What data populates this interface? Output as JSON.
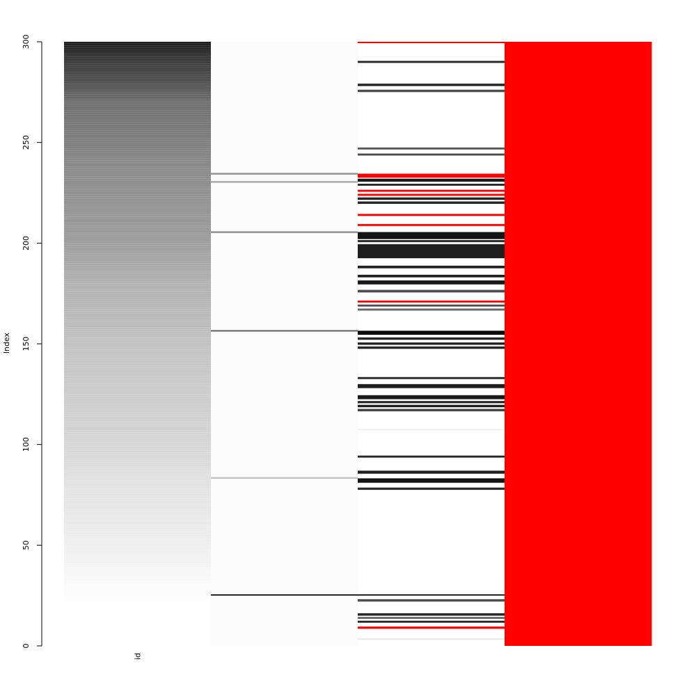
{
  "chart_data": {
    "type": "heatmap",
    "ylabel": "Index",
    "ylim": [
      0,
      300
    ],
    "yticks": [
      0,
      50,
      100,
      150,
      200,
      250,
      300
    ],
    "column_labels": [
      "id",
      "",
      "",
      ""
    ],
    "n_rows": 300,
    "colors": {
      "missing": "#ff0000",
      "background": "#ffffff"
    },
    "columns": [
      {
        "kind": "gradient",
        "stops": [
          {
            "index": 0,
            "value": 0.0
          },
          {
            "index": 20,
            "value": 0.0
          },
          {
            "index": 40,
            "value": 0.04
          },
          {
            "index": 60,
            "value": 0.08
          },
          {
            "index": 80,
            "value": 0.11
          },
          {
            "index": 100,
            "value": 0.16
          },
          {
            "index": 120,
            "value": 0.19
          },
          {
            "index": 140,
            "value": 0.22
          },
          {
            "index": 160,
            "value": 0.26
          },
          {
            "index": 180,
            "value": 0.3
          },
          {
            "index": 200,
            "value": 0.38
          },
          {
            "index": 220,
            "value": 0.42
          },
          {
            "index": 240,
            "value": 0.46
          },
          {
            "index": 250,
            "value": 0.5
          },
          {
            "index": 270,
            "value": 0.56
          },
          {
            "index": 280,
            "value": 0.68
          },
          {
            "index": 290,
            "value": 0.76
          },
          {
            "index": 300,
            "value": 0.88
          }
        ]
      },
      {
        "kind": "bands",
        "base": 0.02,
        "bands": [
          {
            "start": 25,
            "end": 25.6,
            "value": 1.0
          },
          {
            "start": 83,
            "end": 83.8,
            "value": 0.25
          },
          {
            "start": 156,
            "end": 156.9,
            "value": 0.5
          },
          {
            "start": 205,
            "end": 205.9,
            "value": 0.42
          },
          {
            "start": 230,
            "end": 230.8,
            "value": 0.35
          },
          {
            "start": 234,
            "end": 234.9,
            "value": 0.4
          }
        ]
      },
      {
        "kind": "bands",
        "base": 0.0,
        "bands": [
          {
            "start": 3,
            "end": 3.8,
            "value": 0.08
          },
          {
            "start": 8.5,
            "end": 9.6,
            "value": "missing"
          },
          {
            "start": 11.5,
            "end": 12.5,
            "value": 0.85
          },
          {
            "start": 13.5,
            "end": 14.3,
            "value": 0.7
          },
          {
            "start": 15,
            "end": 16.2,
            "value": 0.85
          },
          {
            "start": 22,
            "end": 23.2,
            "value": 0.7
          },
          {
            "start": 25,
            "end": 25.6,
            "value": 1.0
          },
          {
            "start": 77.5,
            "end": 78.6,
            "value": 0.85
          },
          {
            "start": 81,
            "end": 83.2,
            "value": 0.92
          },
          {
            "start": 85.5,
            "end": 87.0,
            "value": 0.88
          },
          {
            "start": 93.5,
            "end": 94.5,
            "value": 0.85
          },
          {
            "start": 107,
            "end": 107.8,
            "value": 0.05
          },
          {
            "start": 116.5,
            "end": 117.7,
            "value": 0.75
          },
          {
            "start": 118.5,
            "end": 119.7,
            "value": 0.88
          },
          {
            "start": 120.5,
            "end": 121.6,
            "value": 0.85
          },
          {
            "start": 122.5,
            "end": 124.5,
            "value": 0.9
          },
          {
            "start": 128,
            "end": 130.0,
            "value": 0.88
          },
          {
            "start": 132.5,
            "end": 133.5,
            "value": 0.85
          },
          {
            "start": 147.5,
            "end": 148.7,
            "value": 0.85
          },
          {
            "start": 149.5,
            "end": 150.7,
            "value": 0.85
          },
          {
            "start": 152,
            "end": 153.2,
            "value": 0.85
          },
          {
            "start": 154.5,
            "end": 156.5,
            "value": 0.95
          },
          {
            "start": 166.5,
            "end": 167.5,
            "value": 0.6
          },
          {
            "start": 168.5,
            "end": 169.5,
            "value": 0.7
          },
          {
            "start": 170.5,
            "end": 171.5,
            "value": "missing"
          },
          {
            "start": 175.5,
            "end": 176.8,
            "value": 0.7
          },
          {
            "start": 179.5,
            "end": 181.5,
            "value": 0.9
          },
          {
            "start": 183,
            "end": 184.3,
            "value": 0.88
          },
          {
            "start": 187.5,
            "end": 188.8,
            "value": 0.88
          },
          {
            "start": 192.5,
            "end": 199.5,
            "value": 0.88
          },
          {
            "start": 200.5,
            "end": 201.5,
            "value": 0.85
          },
          {
            "start": 202,
            "end": 205.5,
            "value": 0.92
          },
          {
            "start": 208.5,
            "end": 209.5,
            "value": "missing"
          },
          {
            "start": 213.5,
            "end": 214.5,
            "value": "missing"
          },
          {
            "start": 219.5,
            "end": 220.7,
            "value": 0.85
          },
          {
            "start": 221.5,
            "end": 222.7,
            "value": 0.85
          },
          {
            "start": 223.5,
            "end": 224.5,
            "value": "missing"
          },
          {
            "start": 225.5,
            "end": 226.5,
            "value": "missing"
          },
          {
            "start": 228.5,
            "end": 229.5,
            "value": 0.85
          },
          {
            "start": 230.5,
            "end": 232.0,
            "value": 0.9
          },
          {
            "start": 232.5,
            "end": 234.5,
            "value": "missing"
          },
          {
            "start": 243.5,
            "end": 244.5,
            "value": 0.7
          },
          {
            "start": 246.5,
            "end": 247.5,
            "value": 0.65
          },
          {
            "start": 275,
            "end": 276.2,
            "value": 0.7
          },
          {
            "start": 278,
            "end": 279.2,
            "value": 0.85
          },
          {
            "start": 289.5,
            "end": 290.5,
            "value": 0.85
          },
          {
            "start": 299.3,
            "end": 300,
            "value": "missing"
          }
        ]
      },
      {
        "kind": "solid",
        "value": "missing"
      }
    ]
  }
}
